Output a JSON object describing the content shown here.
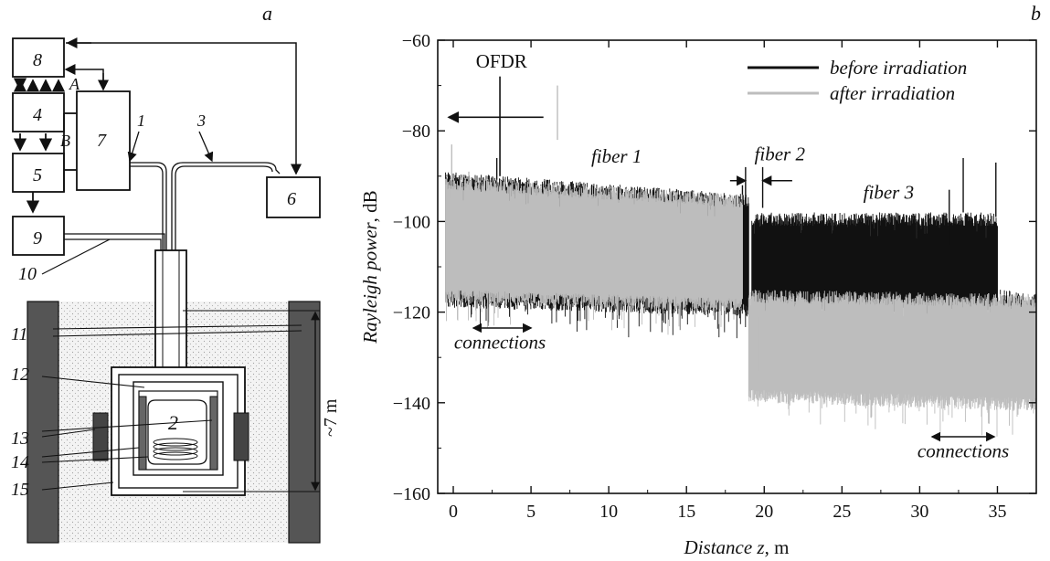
{
  "panel_a": {
    "letter": "a",
    "block_labels": [
      "8",
      "4",
      "5",
      "9",
      "7",
      "6",
      "2"
    ],
    "line_labels": [
      "A",
      "B",
      "1",
      "3"
    ],
    "side_labels": [
      "10",
      "11",
      "12",
      "13",
      "14",
      "15"
    ],
    "depth_label": "~7 m"
  },
  "chart_data": {
    "type": "line",
    "panel_letter": "b",
    "xlabel_italic": "Distance z",
    "xlabel_unit": ", m",
    "ylabel_italic": "Rayleigh power",
    "ylabel_unit": ", dB",
    "xlim": [
      -1,
      37.5
    ],
    "ylim": [
      -160,
      -60
    ],
    "xticks": [
      0,
      5,
      10,
      15,
      20,
      25,
      30,
      35
    ],
    "yticks": [
      -160,
      -140,
      -120,
      -100,
      -80,
      -60
    ],
    "grid": false,
    "legend_position": "top-right",
    "series": [
      {
        "name": "before irradiation",
        "color": "#111111",
        "segments": [
          {
            "x": [
              -0.5,
              19
            ],
            "upper": [
              -92,
              -97
            ],
            "lower": [
              -116,
              -118
            ]
          },
          {
            "x": [
              19.2,
              35
            ],
            "upper": [
              -101,
              -101
            ],
            "lower": [
              -118,
              -118
            ]
          },
          {
            "x": [
              35.1,
              37.5
            ],
            "upper": [
              -118,
              -119
            ],
            "lower": [
              -136,
              -136
            ]
          }
        ],
        "spikes": [
          [
            -0.3,
            -90
          ],
          [
            2.8,
            -86
          ],
          [
            18.6,
            -92
          ],
          [
            31.9,
            -93
          ],
          [
            32.8,
            -86
          ],
          [
            34.9,
            -87
          ]
        ]
      },
      {
        "name": "after irradiation",
        "color": "#bdbdbd",
        "segments": [
          {
            "x": [
              -0.5,
              18.6
            ],
            "upper": [
              -93,
              -97
            ],
            "lower": [
              -115,
              -117
            ]
          },
          {
            "x": [
              19,
              37.5
            ],
            "upper": [
              -118,
              -119
            ],
            "lower": [
              -137,
              -139
            ]
          }
        ],
        "spikes": [
          [
            -0.1,
            -83
          ],
          [
            1.0,
            -89
          ],
          [
            6.7,
            -70
          ],
          [
            19.7,
            -121
          ]
        ]
      }
    ],
    "annotations": [
      {
        "text": "OFDR",
        "italic": false,
        "x": 3.1,
        "y": -66
      },
      {
        "text": "fiber 1",
        "italic": true,
        "x": 10.5,
        "y": -87
      },
      {
        "text": "fiber 2",
        "italic": true,
        "x": 21,
        "y": -86.5
      },
      {
        "text": "fiber 3",
        "italic": true,
        "x": 28,
        "y": -95
      },
      {
        "text": "connections",
        "italic": true,
        "x": 3.0,
        "y": -128
      },
      {
        "text": "connections",
        "italic": true,
        "x": 32.8,
        "y": -152
      }
    ]
  }
}
